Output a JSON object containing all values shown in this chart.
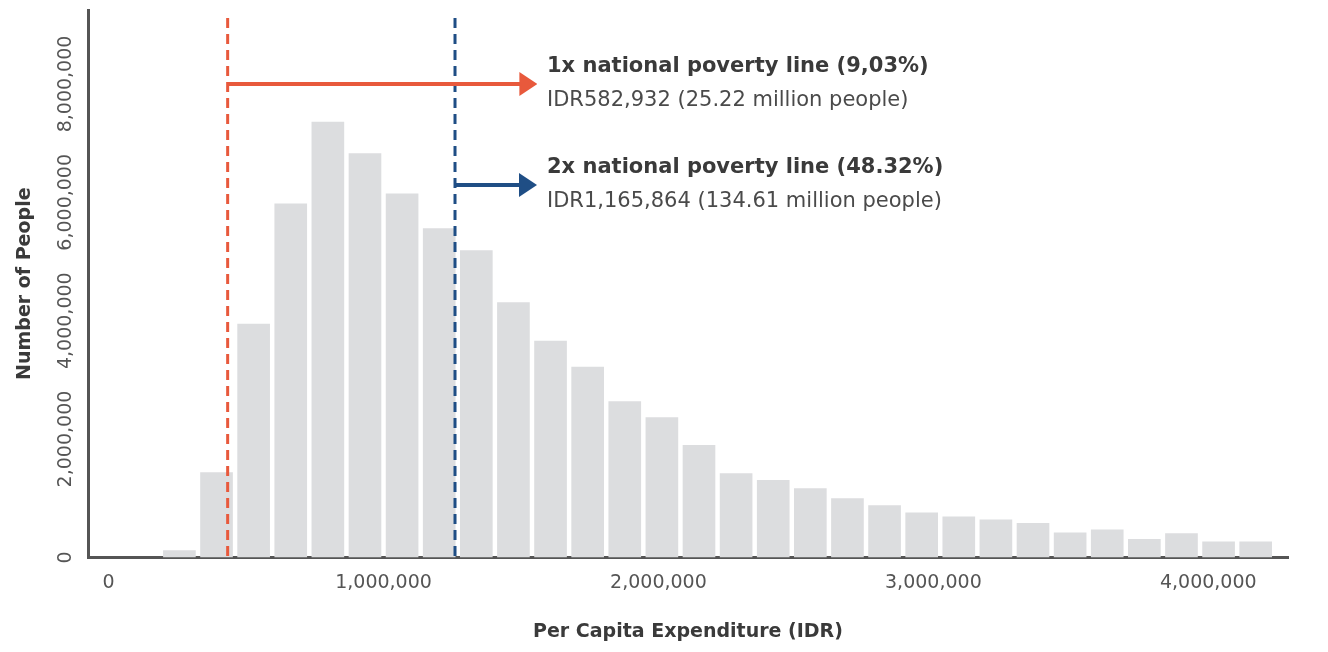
{
  "chart_data": {
    "type": "histogram",
    "xlabel": "Per Capita Expenditure (IDR)",
    "ylabel": "Number of People",
    "bins": [
      190000,
      325000,
      460000,
      595000,
      730000,
      865000,
      1000000,
      1135000,
      1270000,
      1405000,
      1540000,
      1675000,
      1810000,
      1945000,
      2080000,
      2215000,
      2350000,
      2485000,
      2620000,
      2755000,
      2890000,
      3025000,
      3160000,
      3295000,
      3430000,
      3565000,
      3700000,
      3835000,
      3970000,
      4105000,
      4240000
    ],
    "values": [
      120000,
      1440000,
      3950000,
      5980000,
      7360000,
      6830000,
      6150000,
      5560000,
      5190000,
      4310000,
      3660000,
      3220000,
      2640000,
      2370000,
      1900000,
      1420000,
      1310000,
      1170000,
      1000000,
      880000,
      760000,
      690000,
      640000,
      580000,
      420000,
      470000,
      310000,
      410000,
      270000,
      270000
    ],
    "color": "#dcdddf",
    "xlim": [
      -75000,
      4290000
    ],
    "xticks": [
      0,
      {
        "value": 1000000,
        "label": "1,000,000"
      },
      {
        "value": 2000000,
        "label": "2,000,000"
      },
      {
        "value": 3000000,
        "label": "3,000,000"
      },
      {
        "value": 4000000,
        "label": "4,000,000"
      }
    ],
    "ylim": [
      0,
      9250000
    ],
    "yticks": [
      0,
      {
        "value": 2000000,
        "label": "2,000,000"
      },
      {
        "value": 4000000,
        "label": "4,000,000"
      },
      {
        "value": 6000000,
        "label": "6,000,000"
      },
      {
        "value": 8000000,
        "label": "8,000,000"
      }
    ],
    "grid": false,
    "legend": false,
    "ref_lines": [
      {
        "axis": "x",
        "value": 433000,
        "label": "1x national poverty line (9,03%)",
        "color": "#e8593c",
        "line_style": "dashed"
      },
      {
        "axis": "x",
        "value": 1260000,
        "label": "2x national poverty line (48.32%)",
        "color": "#1f4e85",
        "line_style": "dashed"
      }
    ],
    "annotations": [
      {
        "text": "IDR582,932 (25.22 million people)",
        "x": 433000,
        "y": 8000000
      },
      {
        "text": "IDR1,165,864 (134.61 million people)",
        "x": 1260000,
        "y": 6300000
      }
    ]
  }
}
